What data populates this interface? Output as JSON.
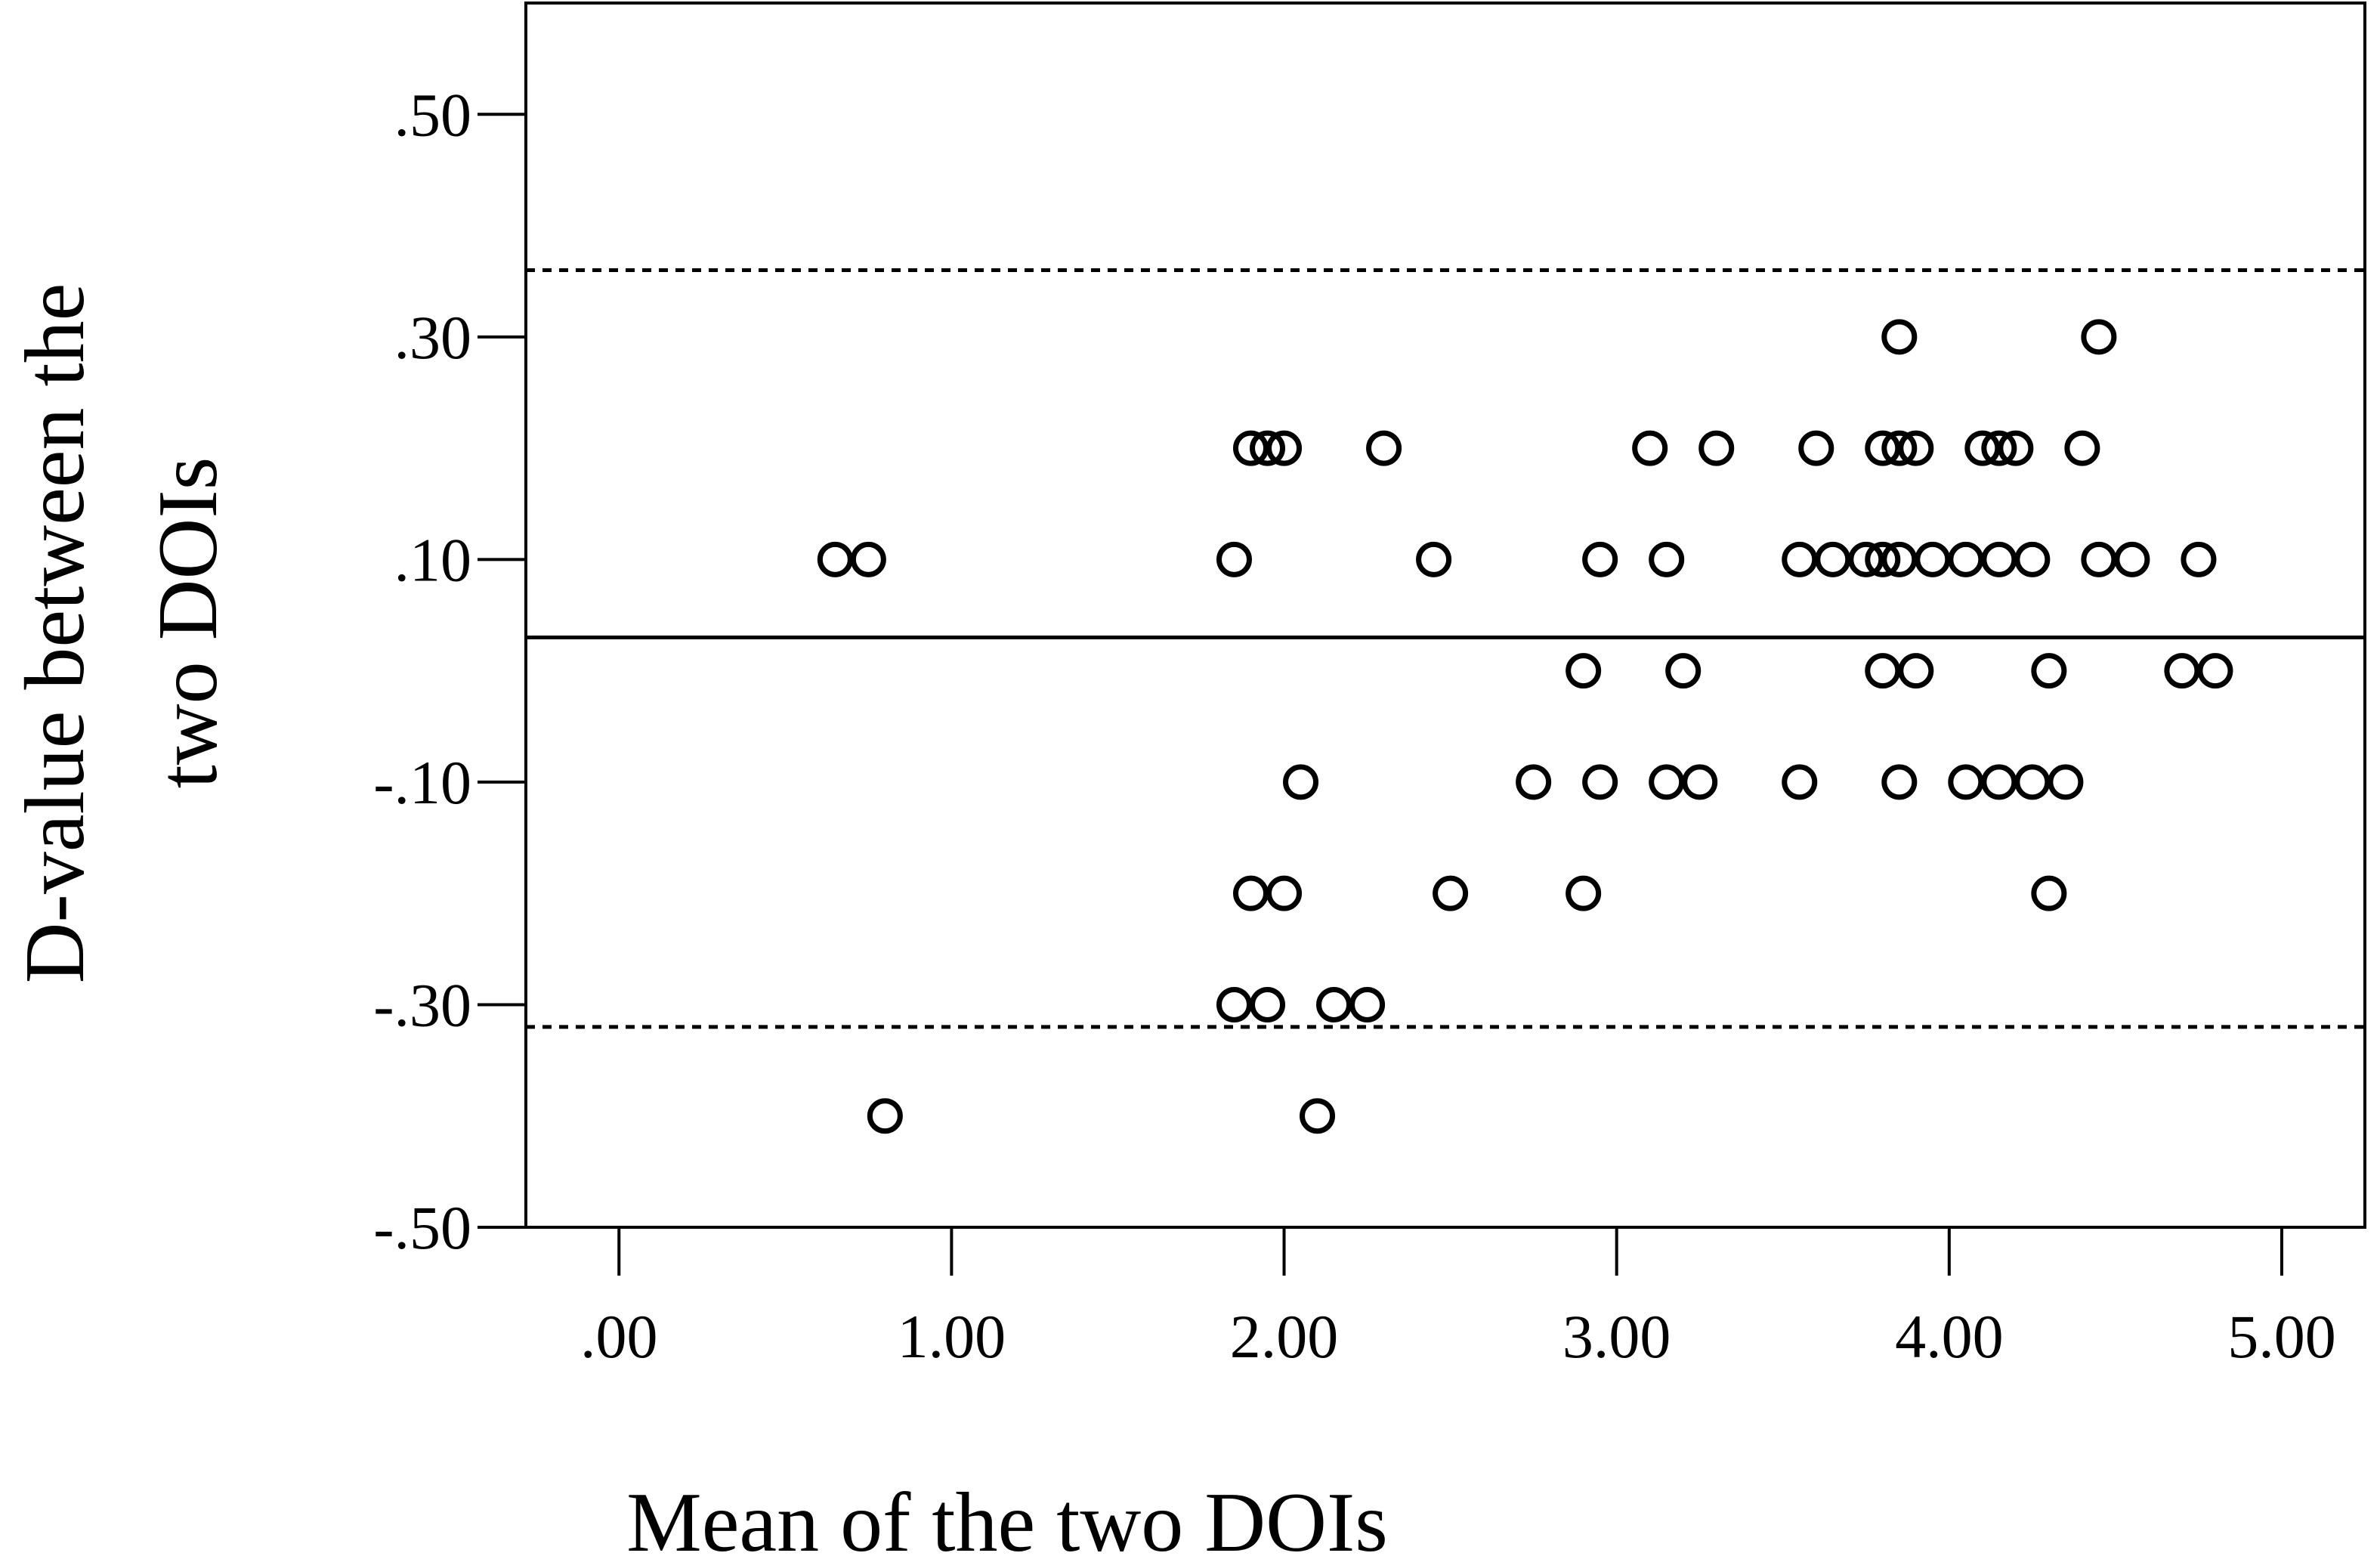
{
  "chart_data": {
    "type": "scatter",
    "title": "",
    "xlabel": "Mean of the two DOIs",
    "ylabel_lines": [
      "D-value between the",
      "two DOIs"
    ],
    "xlim": [
      -0.28,
      5.25
    ],
    "ylim": [
      -0.5,
      0.6
    ],
    "x_ticks": [
      {
        "value": 0,
        "label": ".00"
      },
      {
        "value": 1,
        "label": "1.00"
      },
      {
        "value": 2,
        "label": "2.00"
      },
      {
        "value": 3,
        "label": "3.00"
      },
      {
        "value": 4,
        "label": "4.00"
      },
      {
        "value": 5,
        "label": "5.00"
      }
    ],
    "y_ticks": [
      {
        "value": 0.5,
        "label": ".50"
      },
      {
        "value": 0.3,
        "label": ".30"
      },
      {
        "value": 0.1,
        "label": ".10"
      },
      {
        "value": -0.1,
        "label": "-.10"
      },
      {
        "value": -0.3,
        "label": "-.30"
      },
      {
        "value": -0.5,
        "label": "-.50"
      }
    ],
    "reference_lines": [
      {
        "kind": "mean",
        "style": "solid",
        "y": 0.03
      },
      {
        "kind": "upper-limit",
        "style": "dashed",
        "y": 0.36
      },
      {
        "kind": "lower-limit",
        "style": "dashed",
        "y": -0.32
      }
    ],
    "grid": false,
    "legend": "none",
    "colors": {
      "marker": "#000000",
      "axis": "#000000"
    },
    "points": [
      {
        "x": 0.65,
        "y": 0.1
      },
      {
        "x": 0.75,
        "y": 0.1
      },
      {
        "x": 0.8,
        "y": -0.4
      },
      {
        "x": 1.85,
        "y": 0.1
      },
      {
        "x": 1.85,
        "y": -0.3
      },
      {
        "x": 1.9,
        "y": 0.2
      },
      {
        "x": 1.95,
        "y": 0.2
      },
      {
        "x": 2.0,
        "y": 0.2
      },
      {
        "x": 1.9,
        "y": -0.2
      },
      {
        "x": 2.0,
        "y": -0.2
      },
      {
        "x": 1.95,
        "y": -0.3
      },
      {
        "x": 2.05,
        "y": -0.1
      },
      {
        "x": 2.1,
        "y": -0.4
      },
      {
        "x": 2.15,
        "y": -0.3
      },
      {
        "x": 2.25,
        "y": -0.3
      },
      {
        "x": 2.3,
        "y": 0.2
      },
      {
        "x": 2.45,
        "y": 0.1
      },
      {
        "x": 2.5,
        "y": -0.2
      },
      {
        "x": 2.75,
        "y": -0.1
      },
      {
        "x": 2.9,
        "y": 0.0
      },
      {
        "x": 2.9,
        "y": -0.2
      },
      {
        "x": 2.95,
        "y": 0.1
      },
      {
        "x": 2.95,
        "y": -0.1
      },
      {
        "x": 3.1,
        "y": 0.2
      },
      {
        "x": 3.15,
        "y": 0.1
      },
      {
        "x": 3.15,
        "y": -0.1
      },
      {
        "x": 3.2,
        "y": 0.0
      },
      {
        "x": 3.25,
        "y": -0.1
      },
      {
        "x": 3.3,
        "y": 0.2
      },
      {
        "x": 3.55,
        "y": 0.1
      },
      {
        "x": 3.55,
        "y": -0.1
      },
      {
        "x": 3.6,
        "y": 0.2
      },
      {
        "x": 3.65,
        "y": 0.1
      },
      {
        "x": 3.75,
        "y": 0.1
      },
      {
        "x": 3.8,
        "y": 0.1
      },
      {
        "x": 3.8,
        "y": 0.2
      },
      {
        "x": 3.8,
        "y": 0.0
      },
      {
        "x": 3.85,
        "y": 0.3
      },
      {
        "x": 3.85,
        "y": 0.2
      },
      {
        "x": 3.85,
        "y": 0.1
      },
      {
        "x": 3.85,
        "y": -0.1
      },
      {
        "x": 3.9,
        "y": 0.2
      },
      {
        "x": 3.9,
        "y": 0.0
      },
      {
        "x": 3.95,
        "y": 0.1
      },
      {
        "x": 4.05,
        "y": 0.1
      },
      {
        "x": 4.05,
        "y": -0.1
      },
      {
        "x": 4.1,
        "y": 0.2
      },
      {
        "x": 4.15,
        "y": 0.2
      },
      {
        "x": 4.2,
        "y": 0.2
      },
      {
        "x": 4.15,
        "y": 0.1
      },
      {
        "x": 4.15,
        "y": -0.1
      },
      {
        "x": 4.25,
        "y": -0.1
      },
      {
        "x": 4.25,
        "y": 0.1
      },
      {
        "x": 4.3,
        "y": 0.0
      },
      {
        "x": 4.3,
        "y": -0.2
      },
      {
        "x": 4.35,
        "y": -0.1
      },
      {
        "x": 4.4,
        "y": 0.2
      },
      {
        "x": 4.45,
        "y": 0.3
      },
      {
        "x": 4.45,
        "y": 0.1
      },
      {
        "x": 4.55,
        "y": 0.1
      },
      {
        "x": 4.7,
        "y": 0.0
      },
      {
        "x": 4.8,
        "y": 0.0
      },
      {
        "x": 4.75,
        "y": 0.1
      }
    ]
  }
}
